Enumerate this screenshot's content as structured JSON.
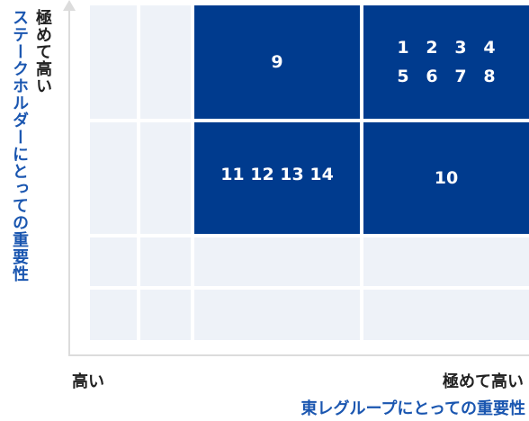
{
  "y_axis": {
    "high_label": "極めて高い",
    "title": "ステークホルダーにとっての重要性"
  },
  "x_axis": {
    "low_label": "高い",
    "high_label": "極めて高い",
    "title": "東レグループにとっての重要性"
  },
  "matrix": {
    "top_middle": "9",
    "top_right": [
      "1",
      "2",
      "3",
      "4",
      "5",
      "6",
      "7",
      "8"
    ],
    "mid_middle": "11 12 13 14",
    "mid_right": "10"
  },
  "colors": {
    "dark_cell": "#003b8e",
    "light_cell": "#eef2f8",
    "axis_title": "#1a56b0",
    "axis_line": "#dcdcdc"
  }
}
